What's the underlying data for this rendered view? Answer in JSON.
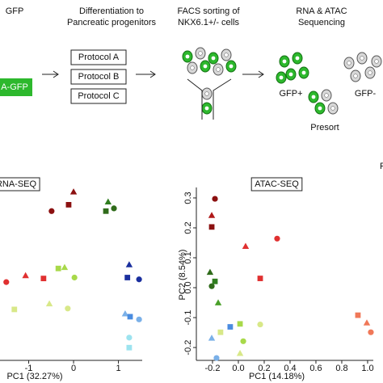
{
  "header": {
    "gfp_top": "GFP",
    "gfp_box": "A-GFP",
    "step1": [
      "Differentiation to",
      "Pancreatic progenitors"
    ],
    "protocols": [
      "Protocol A",
      "Protocol B",
      "Protocol C"
    ],
    "step2": [
      "FACS sorting of",
      "NKX6.1+/- cells"
    ],
    "step3": [
      "RNA & ATAC",
      "Sequencing"
    ],
    "groups": [
      "GFP+",
      "GFP-",
      "Presort"
    ]
  },
  "legend_title": "P",
  "chart_data": [
    {
      "type": "scatter",
      "title": "RNA-SEQ",
      "x_label": "PC1 (32.27%)",
      "xlim": [
        -1.64,
        1.53
      ],
      "ylim": [
        -0.9,
        1.0
      ],
      "xticks": [
        -1,
        0,
        1
      ],
      "x": [
        0,
        -0.11,
        -0.49,
        0.77,
        0.72,
        0.9,
        -1.07,
        -0.67,
        -1.5,
        -0.2,
        -0.34,
        0.02,
        -1.32,
        -0.54,
        -0.13,
        1.24,
        1.2,
        1.46,
        1.15,
        1.26,
        1.46,
        1.24,
        1.24
      ],
      "values": [
        0.95,
        0.81,
        0.74,
        0.84,
        0.74,
        0.77,
        0.03,
        0.0,
        -0.04,
        0.12,
        0.11,
        0.01,
        -0.34,
        -0.28,
        -0.33,
        0.15,
        0.01,
        -0.01,
        -0.39,
        -0.42,
        -0.45,
        -0.65,
        -0.76
      ],
      "colors": [
        "#8b1010",
        "#8b1010",
        "#8b1010",
        "#2f7d1f",
        "#2f6b1a",
        "#2f6b1a",
        "#e03030",
        "#e03030",
        "#e03030",
        "#a8d94a",
        "#a8d94a",
        "#a8d94a",
        "#d8e888",
        "#d8e888",
        "#d8e888",
        "#1a2f9e",
        "#1a2f9e",
        "#1a2f9e",
        "#7ab0e8",
        "#4a8ce0",
        "#7ab0e8",
        "#9ce3ef",
        "#9ce3ef"
      ],
      "markers": [
        "triangle",
        "square",
        "circle",
        "triangle",
        "square",
        "circle",
        "triangle",
        "square",
        "circle",
        "triangle",
        "square",
        "circle",
        "square",
        "triangle",
        "circle",
        "triangle",
        "square",
        "circle",
        "triangle",
        "square",
        "circle",
        "circle",
        "square"
      ]
    },
    {
      "type": "scatter",
      "title": "ATAC-SEQ",
      "x_label": "PC1 (14.18%)",
      "y_label": "PC2 (8.54%)",
      "xlim": [
        -0.325,
        1.044
      ],
      "ylim": [
        -0.243,
        0.335
      ],
      "xticks": [
        -0.2,
        {
          "value": 0,
          "label": "0.0"
        },
        0.2,
        0.4,
        0.6,
        0.8,
        {
          "value": 1,
          "label": "1.0"
        }
      ],
      "yticks": [
        -0.2,
        -0.1,
        {
          "value": 0,
          "label": "0.0"
        },
        0.1,
        0.2,
        0.3
      ],
      "x": [
        -0.181,
        -0.206,
        -0.206,
        0.056,
        0.3,
        0.169,
        -0.219,
        -0.206,
        -0.181,
        -0.156,
        -0.138,
        0.169,
        0.013,
        0.013,
        0.038,
        -0.063,
        -0.206,
        -0.169,
        0.925,
        0.994,
        1.025
      ],
      "values": [
        0.297,
        0.241,
        0.203,
        0.138,
        0.164,
        0.031,
        0.051,
        0.005,
        0.021,
        -0.051,
        -0.149,
        -0.123,
        -0.121,
        -0.22,
        -0.179,
        -0.131,
        -0.169,
        -0.235,
        -0.092,
        -0.118,
        -0.149
      ],
      "colors": [
        "#8b1010",
        "#b01818",
        "#8b1010",
        "#e03030",
        "#e03030",
        "#e03030",
        "#2f6b1a",
        "#2f6b1a",
        "#2f7d1f",
        "#4aa02a",
        "#d8e888",
        "#d8e888",
        "#a8d94a",
        "#d8e888",
        "#a8d94a",
        "#4a8ce0",
        "#7ab0e8",
        "#7ab0e8",
        "#f07858",
        "#f07858",
        "#f07858"
      ],
      "markers": [
        "circle",
        "triangle",
        "square",
        "triangle",
        "circle",
        "square",
        "triangle",
        "circle",
        "square",
        "triangle",
        "square",
        "circle",
        "square",
        "triangle",
        "circle",
        "square",
        "triangle",
        "circle",
        "square",
        "triangle",
        "circle"
      ]
    }
  ]
}
